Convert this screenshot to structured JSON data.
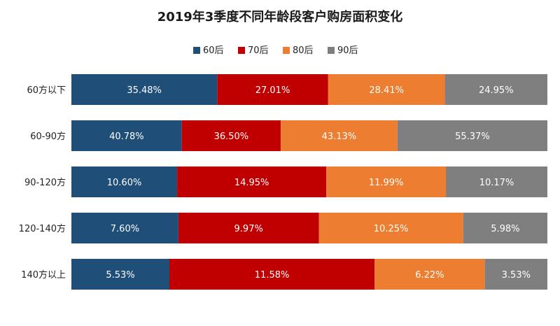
{
  "chart_data": {
    "type": "bar",
    "orientation": "horizontal",
    "stacked": true,
    "title": "2019年3季度不同年龄段客户购房面积变化",
    "categories": [
      "60方以下",
      "60-90方",
      "90-120方",
      "120-140方",
      "140方以上"
    ],
    "series": [
      {
        "name": "60后",
        "color": "#1f4e79",
        "values": [
          35.48,
          40.78,
          10.6,
          7.6,
          5.53
        ],
        "labels": [
          "35.48%",
          "40.78%",
          "10.60%",
          "7.60%",
          "5.53%"
        ]
      },
      {
        "name": "70后",
        "color": "#c00000",
        "values": [
          27.01,
          36.5,
          14.95,
          9.97,
          11.58
        ],
        "labels": [
          "27.01%",
          "36.50%",
          "14.95%",
          "9.97%",
          "11.58%"
        ]
      },
      {
        "name": "80后",
        "color": "#ed7d31",
        "values": [
          28.41,
          43.13,
          11.99,
          10.25,
          6.22
        ],
        "labels": [
          "28.41%",
          "43.13%",
          "11.99%",
          "10.25%",
          "6.22%"
        ]
      },
      {
        "name": "90后",
        "color": "#7f7f7f",
        "values": [
          24.95,
          55.37,
          10.17,
          5.98,
          3.53
        ],
        "labels": [
          "24.95%",
          "55.37%",
          "10.17%",
          "5.98%",
          "3.53%"
        ]
      }
    ],
    "legend_position": "top-center",
    "grid": false
  }
}
